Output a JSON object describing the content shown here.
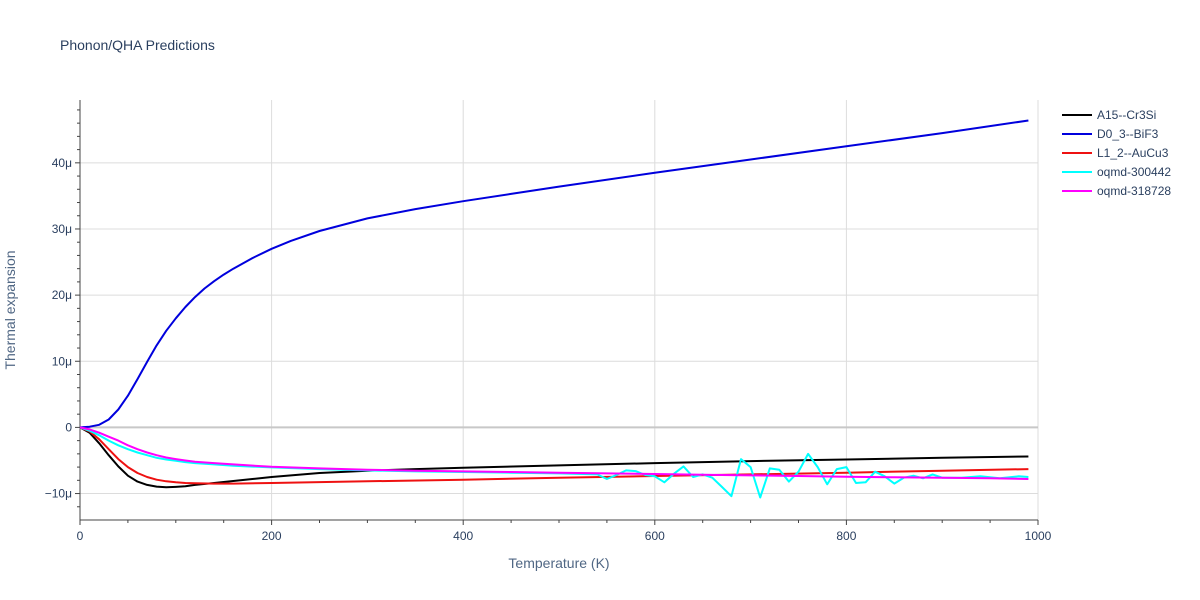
{
  "chart_data": {
    "type": "line",
    "title": "Phonon/QHA Predictions",
    "xlabel": "Temperature (K)",
    "ylabel": "Thermal expansion",
    "xlim": [
      0,
      1000
    ],
    "ylim": [
      -1.4e-05,
      4.95e-05
    ],
    "x_ticks": [
      0,
      200,
      400,
      600,
      800,
      1000
    ],
    "x_tick_labels": [
      "0",
      "200",
      "400",
      "600",
      "800",
      "1000"
    ],
    "y_ticks": [
      -1e-05,
      0,
      1e-05,
      2e-05,
      3e-05,
      4e-05
    ],
    "y_tick_labels": [
      "−10μ",
      "0",
      "10μ",
      "20μ",
      "30μ",
      "40μ"
    ],
    "grid": true,
    "legend_position": "right",
    "series": [
      {
        "name": "A15--Cr3Si",
        "color": "#000000",
        "x": [
          0,
          10,
          20,
          30,
          40,
          50,
          60,
          70,
          80,
          90,
          100,
          110,
          120,
          140,
          160,
          180,
          200,
          250,
          300,
          350,
          400,
          500,
          600,
          700,
          800,
          900,
          990
        ],
        "y": [
          0,
          -8e-07,
          -2.4e-06,
          -4.2e-06,
          -5.9e-06,
          -7.3e-06,
          -8.2e-06,
          -8.7e-06,
          -8.95e-06,
          -9.05e-06,
          -9e-06,
          -8.9e-06,
          -8.7e-06,
          -8.4e-06,
          -8.1e-06,
          -7.8e-06,
          -7.5e-06,
          -6.9e-06,
          -6.55e-06,
          -6.3e-06,
          -6.1e-06,
          -5.75e-06,
          -5.4e-06,
          -5.1e-06,
          -4.85e-06,
          -4.6e-06,
          -4.4e-06
        ]
      },
      {
        "name": "D0_3--BiF3",
        "color": "#0000dd",
        "x": [
          0,
          10,
          20,
          30,
          40,
          50,
          60,
          70,
          80,
          90,
          100,
          110,
          120,
          130,
          140,
          150,
          160,
          180,
          200,
          220,
          250,
          300,
          350,
          400,
          450,
          500,
          600,
          700,
          800,
          900,
          990
        ],
        "y": [
          0,
          1e-07,
          4e-07,
          1.2e-06,
          2.7e-06,
          4.8e-06,
          7.3e-06,
          9.9e-06,
          1.24e-05,
          1.46e-05,
          1.65e-05,
          1.82e-05,
          1.97e-05,
          2.1e-05,
          2.21e-05,
          2.31e-05,
          2.4e-05,
          2.56e-05,
          2.7e-05,
          2.82e-05,
          2.97e-05,
          3.16e-05,
          3.3e-05,
          3.42e-05,
          3.53e-05,
          3.64e-05,
          3.85e-05,
          4.05e-05,
          4.25e-05,
          4.45e-05,
          4.64e-05
        ]
      },
      {
        "name": "L1_2--AuCu3",
        "color": "#ee1111",
        "x": [
          0,
          10,
          20,
          30,
          40,
          50,
          60,
          70,
          80,
          90,
          100,
          110,
          120,
          140,
          160,
          200,
          300,
          400,
          500,
          600,
          700,
          800,
          900,
          990
        ],
        "y": [
          0,
          -6e-07,
          -1.8e-06,
          -3.3e-06,
          -4.8e-06,
          -6e-06,
          -6.9e-06,
          -7.5e-06,
          -7.9e-06,
          -8.15e-06,
          -8.3e-06,
          -8.4e-06,
          -8.45e-06,
          -8.5e-06,
          -8.5e-06,
          -8.4e-06,
          -8.15e-06,
          -7.9e-06,
          -7.6e-06,
          -7.35e-06,
          -7.1e-06,
          -6.85e-06,
          -6.55e-06,
          -6.3e-06
        ]
      },
      {
        "name": "oqmd-300442",
        "color": "#00ffff",
        "x": [
          0,
          10,
          20,
          30,
          40,
          50,
          60,
          70,
          80,
          90,
          100,
          110,
          120,
          140,
          160,
          200,
          250,
          300,
          350,
          400,
          450,
          500,
          540,
          550,
          560,
          570,
          580,
          590,
          600,
          610,
          620,
          630,
          640,
          650,
          660,
          670,
          680,
          690,
          700,
          710,
          720,
          730,
          740,
          750,
          760,
          770,
          780,
          790,
          800,
          810,
          820,
          830,
          840,
          850,
          860,
          870,
          880,
          890,
          900,
          920,
          940,
          960,
          980,
          990
        ],
        "y": [
          0,
          -5e-07,
          -1.2e-06,
          -2e-06,
          -2.7e-06,
          -3.3e-06,
          -3.8e-06,
          -4.2e-06,
          -4.6e-06,
          -4.85e-06,
          -5.05e-06,
          -5.25e-06,
          -5.4e-06,
          -5.6e-06,
          -5.8e-06,
          -6.05e-06,
          -6.3e-06,
          -6.5e-06,
          -6.65e-06,
          -6.75e-06,
          -6.85e-06,
          -6.95e-06,
          -7.1e-06,
          -7.8e-06,
          -7.2e-06,
          -6.5e-06,
          -6.6e-06,
          -7.2e-06,
          -7.4e-06,
          -8.3e-06,
          -7e-06,
          -5.9e-06,
          -7.5e-06,
          -7.1e-06,
          -7.6e-06,
          -9e-06,
          -1.04e-05,
          -4.8e-06,
          -6e-06,
          -1.06e-05,
          -6.2e-06,
          -6.4e-06,
          -8.2e-06,
          -6.7e-06,
          -4e-06,
          -6e-06,
          -8.6e-06,
          -6.3e-06,
          -6e-06,
          -8.4e-06,
          -8.3e-06,
          -6.7e-06,
          -7.4e-06,
          -8.5e-06,
          -7.6e-06,
          -7.3e-06,
          -7.7e-06,
          -7.1e-06,
          -7.6e-06,
          -7.6e-06,
          -7.4e-06,
          -7.7e-06,
          -7.4e-06,
          -7.5e-06
        ]
      },
      {
        "name": "oqmd-318728",
        "color": "#ff00ff",
        "x": [
          0,
          10,
          20,
          30,
          40,
          50,
          60,
          70,
          80,
          90,
          100,
          110,
          120,
          140,
          160,
          200,
          250,
          300,
          350,
          400,
          450,
          500,
          550,
          600,
          650,
          700,
          750,
          800,
          850,
          900,
          950,
          990
        ],
        "y": [
          0,
          -3e-07,
          -8e-07,
          -1.4e-06,
          -2e-06,
          -2.7e-06,
          -3.3e-06,
          -3.8e-06,
          -4.2e-06,
          -4.55e-06,
          -4.8e-06,
          -5e-06,
          -5.2e-06,
          -5.4e-06,
          -5.6e-06,
          -5.95e-06,
          -6.2e-06,
          -6.4e-06,
          -6.55e-06,
          -6.65e-06,
          -6.75e-06,
          -6.85e-06,
          -6.95e-06,
          -7.05e-06,
          -7.15e-06,
          -7.25e-06,
          -7.35e-06,
          -7.45e-06,
          -7.55e-06,
          -7.6e-06,
          -7.7e-06,
          -7.8e-06
        ]
      }
    ]
  }
}
